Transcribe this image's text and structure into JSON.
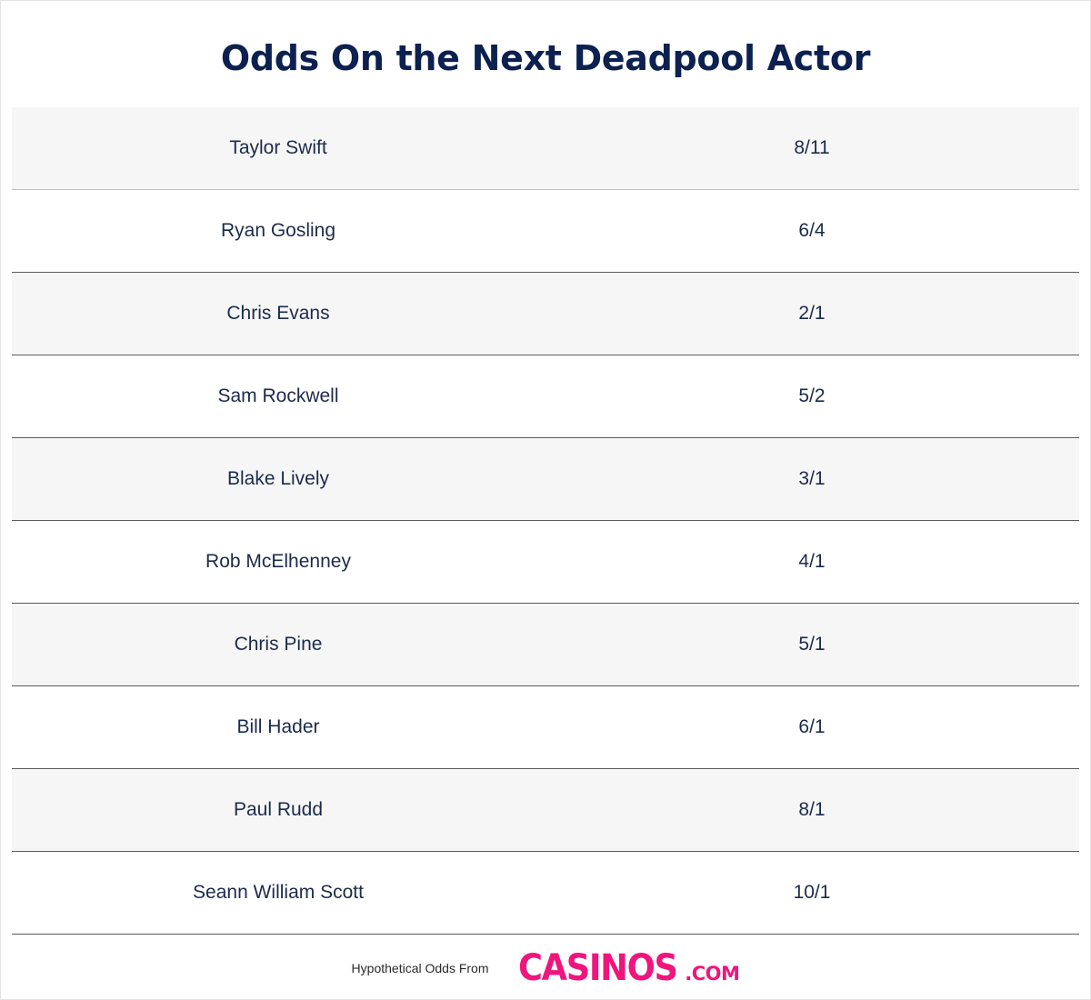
{
  "title": "Odds On the Next Deadpool Actor",
  "rows": [
    {
      "name": "Taylor Swift",
      "odds": "8/11"
    },
    {
      "name": "Ryan Gosling",
      "odds": "6/4"
    },
    {
      "name": "Chris Evans",
      "odds": "2/1"
    },
    {
      "name": "Sam Rockwell",
      "odds": "5/2"
    },
    {
      "name": "Blake Lively",
      "odds": "3/1"
    },
    {
      "name": "Rob McElhenney",
      "odds": "4/1"
    },
    {
      "name": "Chris Pine",
      "odds": "5/1"
    },
    {
      "name": "Bill Hader",
      "odds": "6/1"
    },
    {
      "name": "Paul Rudd",
      "odds": "8/1"
    },
    {
      "name": "Seann William Scott",
      "odds": "10/1"
    }
  ],
  "footer": {
    "text": "Hypothetical Odds From",
    "logo_main": "CASINOS",
    "logo_domain": ".COM"
  },
  "colors": {
    "title": "#0c2150",
    "text": "#1c2b4a",
    "row_shade": "#f6f6f6",
    "brand_pink": "#f0157d"
  }
}
